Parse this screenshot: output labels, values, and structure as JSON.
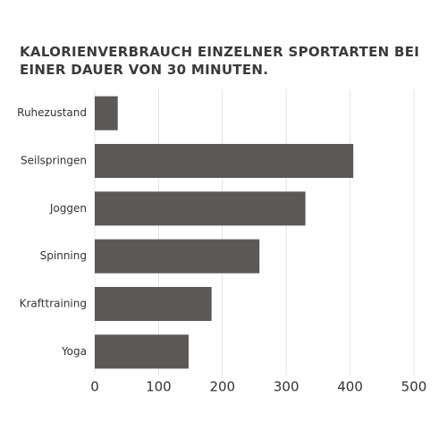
{
  "chart_data": {
    "type": "hbar",
    "title": "KALORIENVERBRAUCH EINZELNER SPORTARTEN BEI EINER DAUER VON 30 MINUTEN.",
    "categories": [
      "Ruhezustand",
      "Seilspringen",
      "Joggen",
      "Spinning",
      "Krafttraining",
      "Yoga"
    ],
    "values": [
      36,
      405,
      330,
      258,
      183,
      147
    ],
    "color": "#5a5957",
    "xlim": [
      0,
      500
    ],
    "xticks": [
      0,
      100,
      200,
      300,
      400,
      500
    ],
    "grid": true
  }
}
